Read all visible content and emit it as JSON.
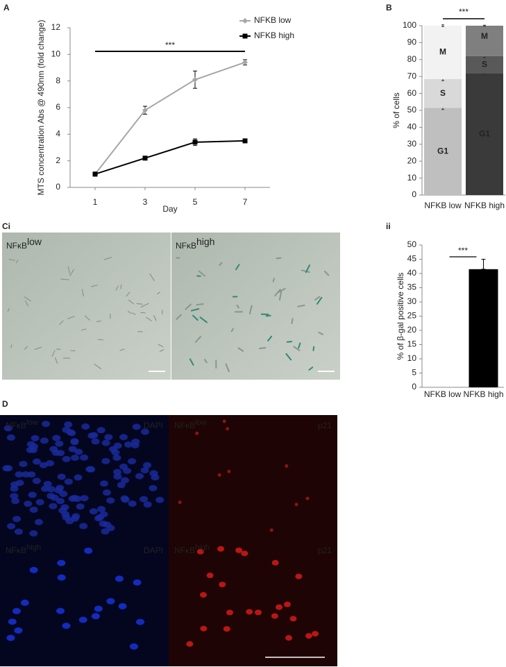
{
  "panel_labels": [
    "A",
    "B",
    "Ci",
    "ii",
    "D"
  ],
  "chart_data": [
    {
      "type": "line",
      "x_label": "Day",
      "y_label": "MTS concentration Abs @ 490nm (fold change)",
      "x": [
        1,
        3,
        5,
        7
      ],
      "xlim": [
        0,
        8
      ],
      "xticks": [
        1,
        3,
        5,
        7
      ],
      "ylim": [
        0,
        12
      ],
      "yticks": [
        0,
        2,
        4,
        6,
        8,
        10,
        12
      ],
      "grid": false,
      "legend": "top-right",
      "annotation": "***",
      "series": [
        {
          "name": "NFKB low",
          "color": "#a6a6a6",
          "marker": "diamond",
          "values": [
            1.0,
            5.8,
            8.1,
            9.4
          ],
          "errors": [
            0.15,
            0.3,
            0.65,
            0.2
          ]
        },
        {
          "name": "NFKB high",
          "color": "#000000",
          "marker": "square",
          "values": [
            1.0,
            2.2,
            3.4,
            3.5
          ],
          "errors": [
            0.15,
            0.08,
            0.25,
            0.15
          ]
        }
      ]
    },
    {
      "type": "stacked_bar",
      "y_label": "% of cells",
      "categories": [
        "NFKB low",
        "NFKB high"
      ],
      "ylim": [
        0,
        100
      ],
      "yticks": [
        0,
        10,
        20,
        30,
        40,
        50,
        60,
        70,
        80,
        90,
        100
      ],
      "grid": false,
      "annotation": "***",
      "series": [
        {
          "name": "G1",
          "colors": [
            "#bfbfbf",
            "#3a3a3a"
          ],
          "values": [
            51.5,
            72
          ],
          "errors": [
            1,
            1
          ]
        },
        {
          "name": "S",
          "colors": [
            "#d9d9d9",
            "#595959"
          ],
          "values": [
            17,
            10
          ],
          "errors": [
            1,
            1
          ]
        },
        {
          "name": "M",
          "colors": [
            "#f2f2f2",
            "#7f7f7f"
          ],
          "values": [
            31.5,
            18
          ],
          "errors": [
            0.5,
            0.3
          ]
        }
      ]
    },
    {
      "type": "bar",
      "y_label": "% of β-gal positive cells",
      "categories": [
        "NFKB low",
        "NFKB high"
      ],
      "values": [
        0,
        41.5
      ],
      "errors": [
        0,
        3.5
      ],
      "color": "#000000",
      "ylim": [
        0,
        50
      ],
      "yticks": [
        0,
        5,
        10,
        15,
        20,
        25,
        30,
        35,
        40,
        45,
        50
      ],
      "grid": false,
      "annotation": "***"
    }
  ],
  "micrographs": {
    "Ci": [
      {
        "text": "NFκB",
        "sup": "low"
      },
      {
        "text": "NFκB",
        "sup": "high"
      }
    ],
    "D": [
      {
        "text": "NFκB",
        "sup": "low",
        "stain": "DAPI"
      },
      {
        "text": "NFκB",
        "sup": "low",
        "stain": "p21"
      },
      {
        "text": "NFκB",
        "sup": "high",
        "stain": "DAPI"
      },
      {
        "text": "NFκB",
        "sup": "high",
        "stain": "p21"
      }
    ]
  }
}
